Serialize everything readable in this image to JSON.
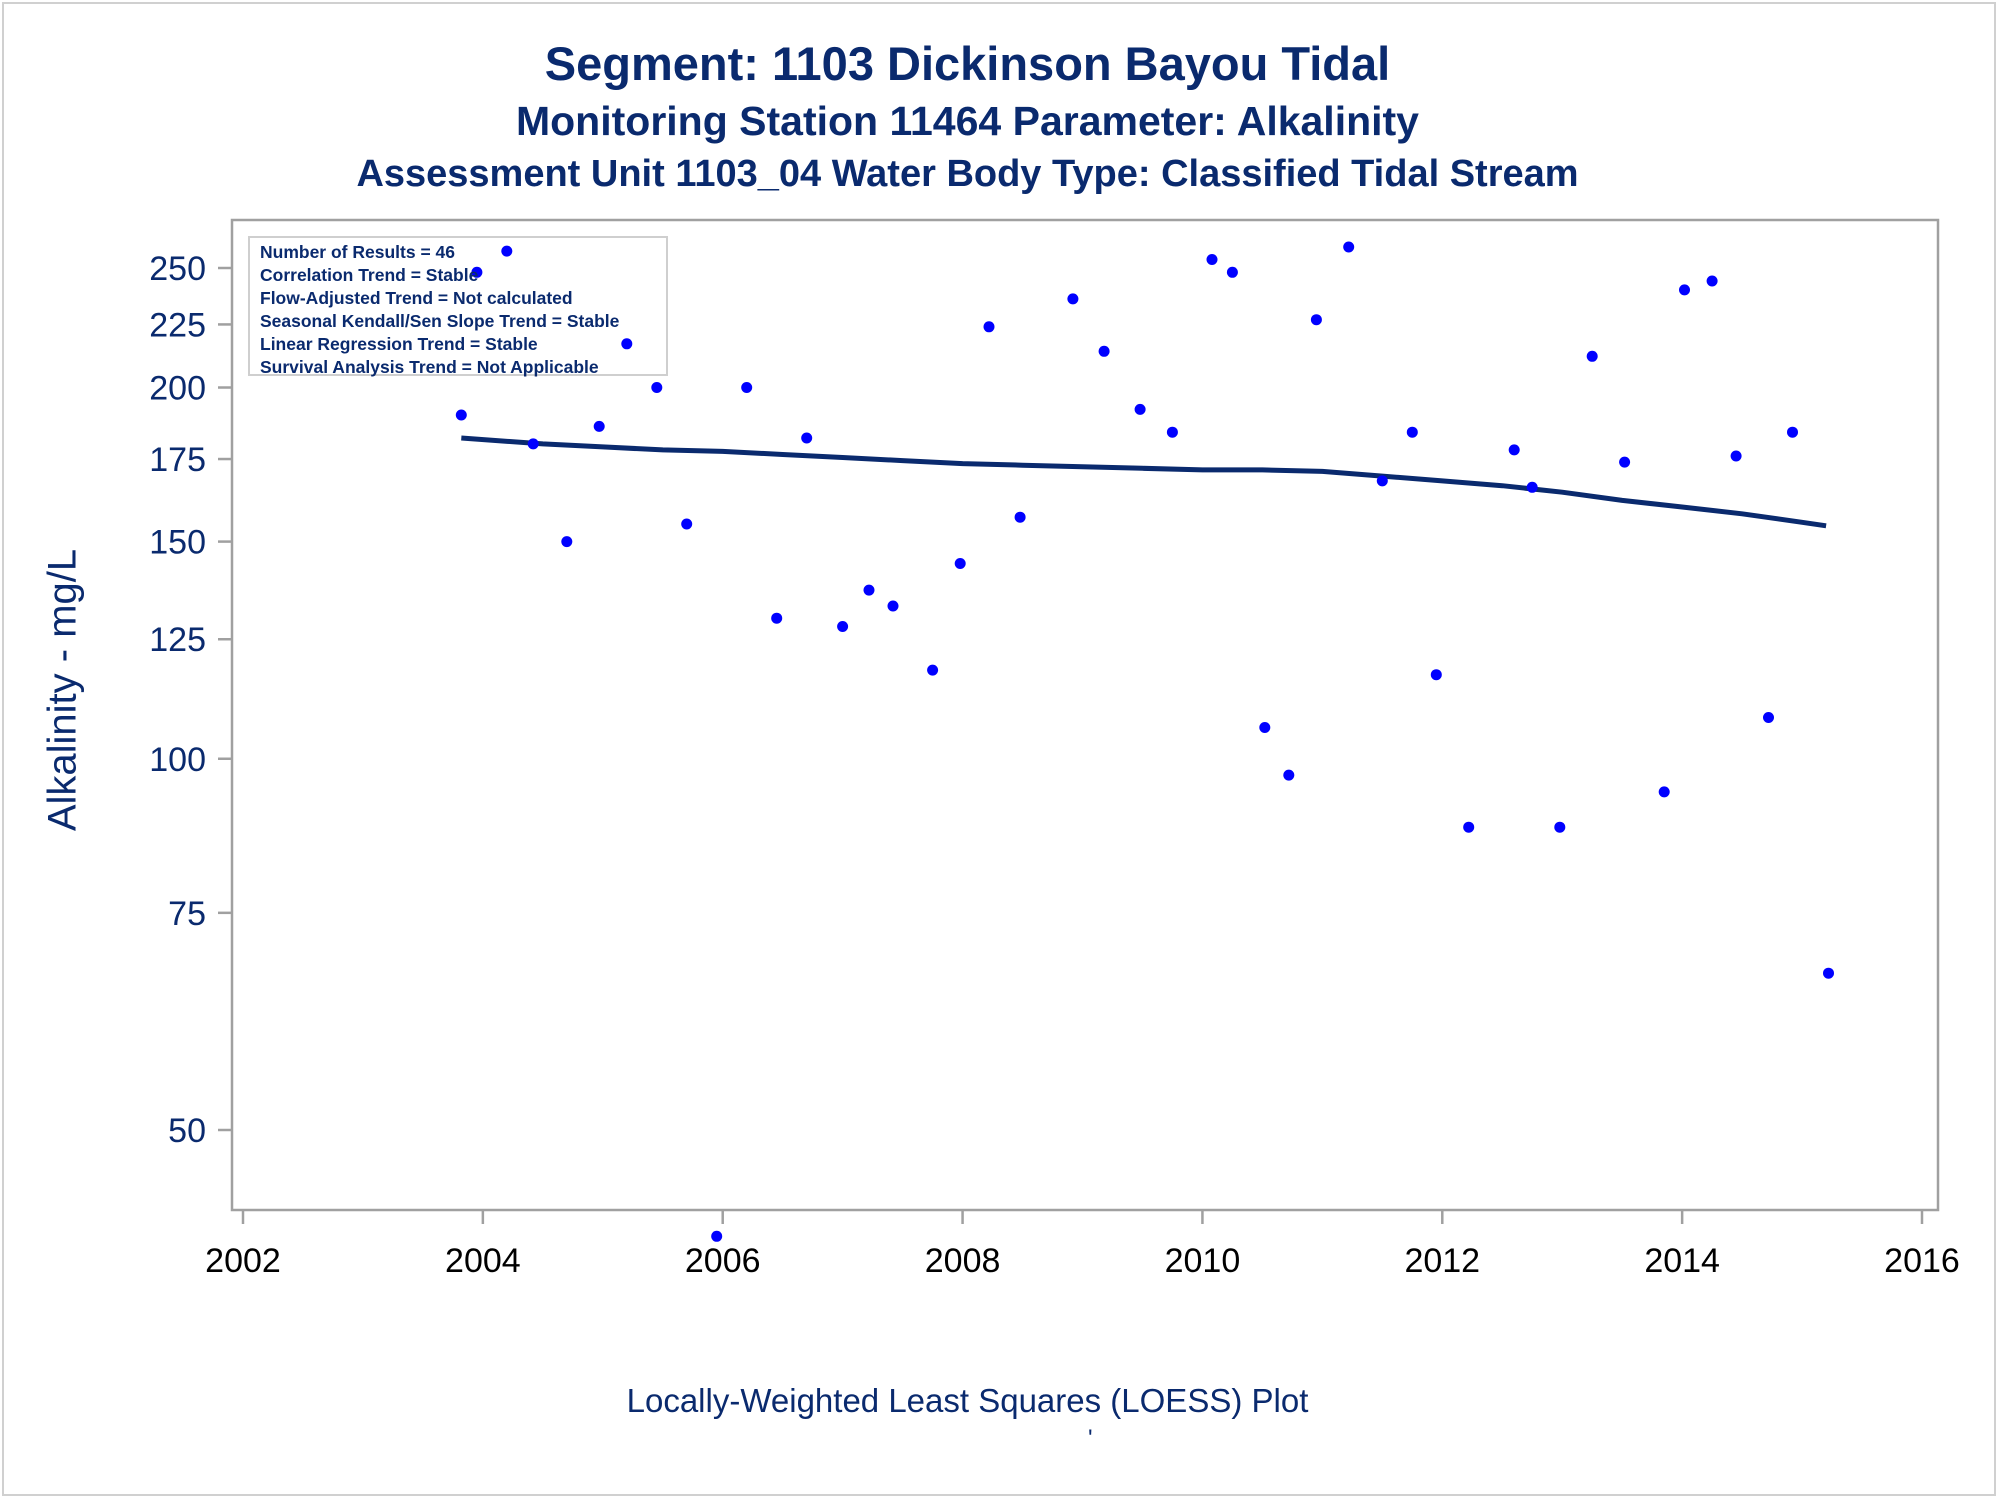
{
  "chart_data": {
    "type": "scatter",
    "title": "Segment: 1103  Dickinson Bayou Tidal",
    "subtitle": "Monitoring Station 11464 Parameter: Alkalinity",
    "subtitle2": "Assessment Unit 1103_04   Water Body Type: Classified Tidal Stream",
    "ylabel": "Alkalinity - mg/L",
    "footnote": "Locally-Weighted Least Squares (LOESS) Plot",
    "footnote_mark": "'",
    "y_scale": "log",
    "xlim": [
      2002,
      2016
    ],
    "ylim": [
      44,
      268
    ],
    "x_ticks": [
      2002,
      2004,
      2006,
      2008,
      2010,
      2012,
      2014,
      2016
    ],
    "y_ticks": [
      50,
      75,
      100,
      125,
      150,
      175,
      200,
      225,
      250
    ],
    "grid": false,
    "marker_color": "#0000ff",
    "line_color": "#0a2a6e",
    "text_color": "#0a2a6e",
    "stats_box": {
      "placement": "top-left",
      "lines": [
        "Number of Results = 46",
        "Correlation Trend = Stable",
        "Flow-Adjusted Trend = Not calculated",
        "Seasonal Kendall/Sen Slope Trend = Stable",
        "Linear Regression Trend = Stable",
        "Survival Analysis Trend = Not Applicable"
      ]
    },
    "series": [
      {
        "type": "scatter",
        "points": [
          [
            2003.82,
            190
          ],
          [
            2003.95,
            248
          ],
          [
            2004.2,
            258
          ],
          [
            2004.42,
            180
          ],
          [
            2004.7,
            150
          ],
          [
            2004.97,
            186
          ],
          [
            2005.2,
            217
          ],
          [
            2005.45,
            200
          ],
          [
            2005.7,
            155
          ],
          [
            2005.95,
            41
          ],
          [
            2006.2,
            200
          ],
          [
            2006.45,
            130
          ],
          [
            2006.7,
            182
          ],
          [
            2007.0,
            128
          ],
          [
            2007.22,
            137
          ],
          [
            2007.42,
            133
          ],
          [
            2007.75,
            118
          ],
          [
            2007.98,
            144
          ],
          [
            2008.22,
            224
          ],
          [
            2008.48,
            157
          ],
          [
            2008.92,
            236
          ],
          [
            2009.18,
            214
          ],
          [
            2009.48,
            192
          ],
          [
            2009.75,
            184
          ],
          [
            2010.08,
            254
          ],
          [
            2010.25,
            248
          ],
          [
            2010.52,
            106
          ],
          [
            2010.72,
            97
          ],
          [
            2010.95,
            227
          ],
          [
            2011.22,
            260
          ],
          [
            2011.5,
            168
          ],
          [
            2011.75,
            184
          ],
          [
            2011.95,
            117
          ],
          [
            2012.22,
            88
          ],
          [
            2012.6,
            178
          ],
          [
            2012.75,
            166
          ],
          [
            2012.98,
            88
          ],
          [
            2013.25,
            212
          ],
          [
            2013.52,
            174
          ],
          [
            2013.85,
            94
          ],
          [
            2014.02,
            240
          ],
          [
            2014.25,
            244
          ],
          [
            2014.45,
            176
          ],
          [
            2014.72,
            108
          ],
          [
            2014.92,
            184
          ],
          [
            2015.22,
            67
          ]
        ]
      },
      {
        "type": "line",
        "points": [
          [
            2003.82,
            182
          ],
          [
            2004.5,
            180
          ],
          [
            2005.0,
            179
          ],
          [
            2005.5,
            178
          ],
          [
            2006.0,
            177.5
          ],
          [
            2006.5,
            176.5
          ],
          [
            2007.0,
            175.5
          ],
          [
            2007.5,
            174.5
          ],
          [
            2008.0,
            173.5
          ],
          [
            2008.5,
            173
          ],
          [
            2009.0,
            172.5
          ],
          [
            2009.5,
            172
          ],
          [
            2010.0,
            171.5
          ],
          [
            2010.5,
            171.5
          ],
          [
            2011.0,
            171
          ],
          [
            2011.5,
            169.5
          ],
          [
            2012.0,
            168
          ],
          [
            2012.5,
            166.5
          ],
          [
            2013.0,
            164.5
          ],
          [
            2013.5,
            162
          ],
          [
            2014.0,
            160
          ],
          [
            2014.5,
            158
          ],
          [
            2015.0,
            155.5
          ],
          [
            2015.2,
            154.5
          ]
        ]
      }
    ]
  }
}
